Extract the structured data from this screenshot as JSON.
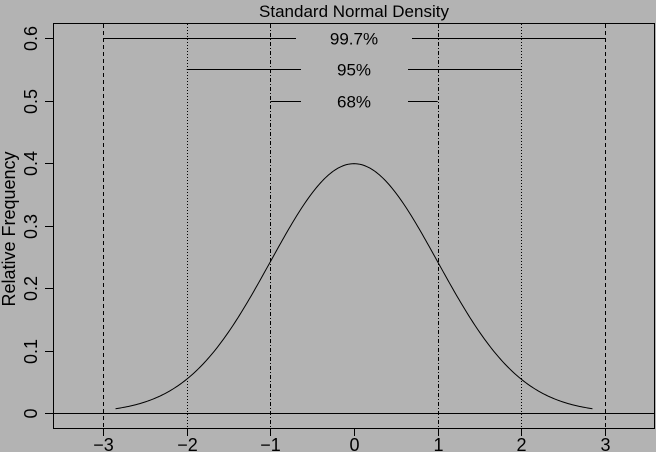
{
  "chart_data": {
    "type": "line",
    "title": "Standard Normal Density",
    "xlabel": "",
    "ylabel": "Relative Frequency",
    "xlim": [
      -3.6,
      3.6
    ],
    "ylim": [
      -0.024,
      0.62
    ],
    "x_ticks": [
      -3,
      -2,
      -1,
      0,
      1,
      2,
      3
    ],
    "x_tick_labels": [
      "−3",
      "−2",
      "−1",
      "0",
      "1",
      "2",
      "3"
    ],
    "y_ticks": [
      0,
      0.1,
      0.2,
      0.3,
      0.4,
      0.5,
      0.6
    ],
    "y_tick_labels": [
      "0",
      "0.1",
      "0.2",
      "0.3",
      "0.4",
      "0.5",
      "0.6"
    ],
    "grid": false,
    "series": [
      {
        "name": "standard normal density",
        "function": "dnorm(x)",
        "x_range": [
          -2.85,
          2.85
        ],
        "x": [
          -3,
          -2.5,
          -2,
          -1.5,
          -1,
          -0.5,
          0,
          0.5,
          1,
          1.5,
          2,
          2.5,
          3
        ],
        "values": [
          0.0044,
          0.0175,
          0.054,
          0.1295,
          0.242,
          0.3521,
          0.3989,
          0.3521,
          0.242,
          0.1295,
          0.054,
          0.0175,
          0.0044
        ]
      }
    ],
    "reference_lines": {
      "horizontal": [
        {
          "y": 0,
          "style": "solid"
        }
      ],
      "vertical": [
        {
          "x": -3,
          "style": "dashed"
        },
        {
          "x": -2,
          "style": "dotted"
        },
        {
          "x": -1,
          "style": "dashdot"
        },
        {
          "x": 1,
          "style": "dashdot"
        },
        {
          "x": 2,
          "style": "dotted"
        },
        {
          "x": 3,
          "style": "dashed"
        }
      ]
    },
    "annotations": [
      {
        "label": "99.7%",
        "y": 0.6,
        "x_from": -3,
        "x_to": 3
      },
      {
        "label": "95%",
        "y": 0.55,
        "x_from": -2,
        "x_to": 2
      },
      {
        "label": "68%",
        "y": 0.5,
        "x_from": -1,
        "x_to": 1
      }
    ]
  },
  "colors": {
    "background": "#b3b3b3",
    "foreground": "#000000"
  }
}
